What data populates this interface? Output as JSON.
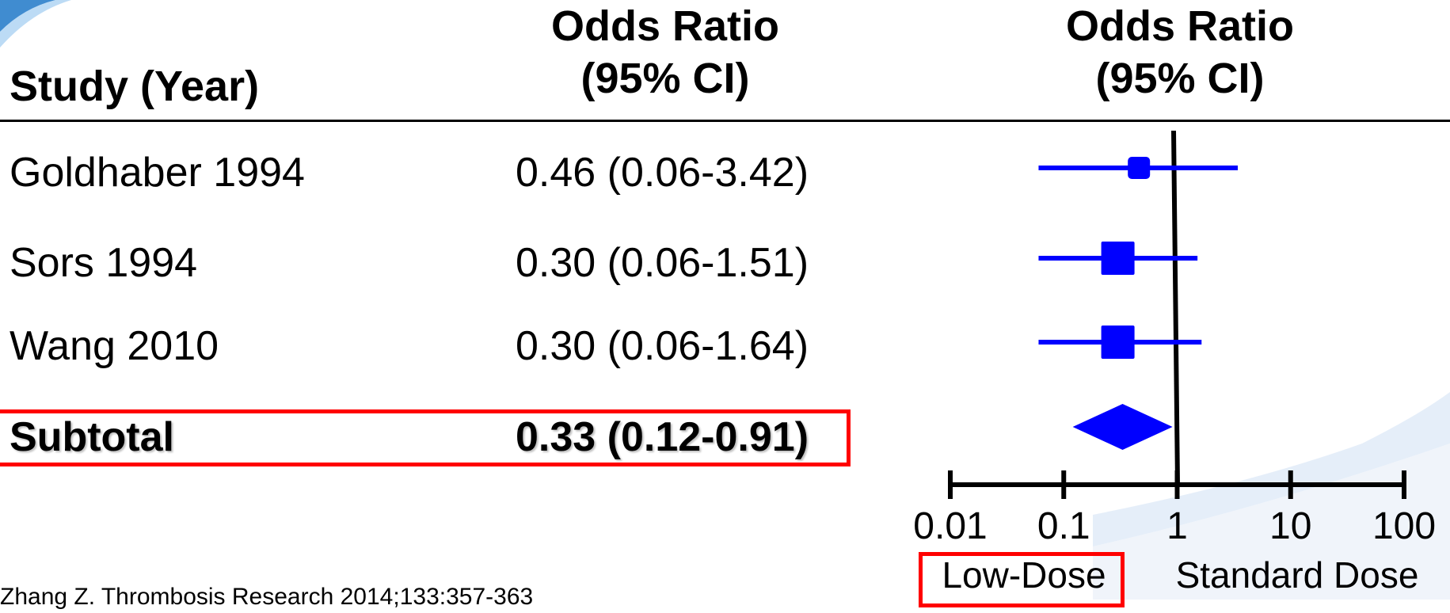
{
  "headers": {
    "study": "Study (Year)",
    "or_left_line1": "Odds Ratio",
    "or_left_line2": "(95% CI)",
    "or_right_line1": "Odds Ratio",
    "or_right_line2": "(95% CI)"
  },
  "rows": [
    {
      "study": "Goldhaber 1994",
      "ci_text": "0.46 (0.06-3.42)"
    },
    {
      "study": "Sors 1994",
      "ci_text": "0.30 (0.06-1.51)"
    },
    {
      "study": "Wang 2010",
      "ci_text": "0.30 (0.06-1.64)"
    },
    {
      "study": "Subtotal",
      "ci_text": "0.33 (0.12-0.91)"
    }
  ],
  "citation": "Zhang Z. Thrombosis Research 2014;133:357-363",
  "chart_data": {
    "type": "forest",
    "scale": "log",
    "xlim": [
      0.01,
      100
    ],
    "ticks": [
      0.01,
      0.1,
      1,
      10,
      100
    ],
    "tick_labels": [
      "0.01",
      "0.1",
      "1",
      "10",
      "100"
    ],
    "reference_line": 1,
    "left_caption": "Low-Dose",
    "right_caption": "Standard Dose",
    "studies": [
      {
        "name": "Goldhaber 1994",
        "or": 0.46,
        "lower": 0.06,
        "upper": 3.42,
        "weight": 1
      },
      {
        "name": "Sors 1994",
        "or": 0.3,
        "lower": 0.06,
        "upper": 1.51,
        "weight": 2
      },
      {
        "name": "Wang 2010",
        "or": 0.3,
        "lower": 0.06,
        "upper": 1.64,
        "weight": 2
      }
    ],
    "subtotal": {
      "name": "Subtotal",
      "or": 0.33,
      "lower": 0.12,
      "upper": 0.91
    },
    "colors": {
      "marker": "#0000ff",
      "axis": "#000000",
      "highlight": "#ff0000"
    }
  }
}
